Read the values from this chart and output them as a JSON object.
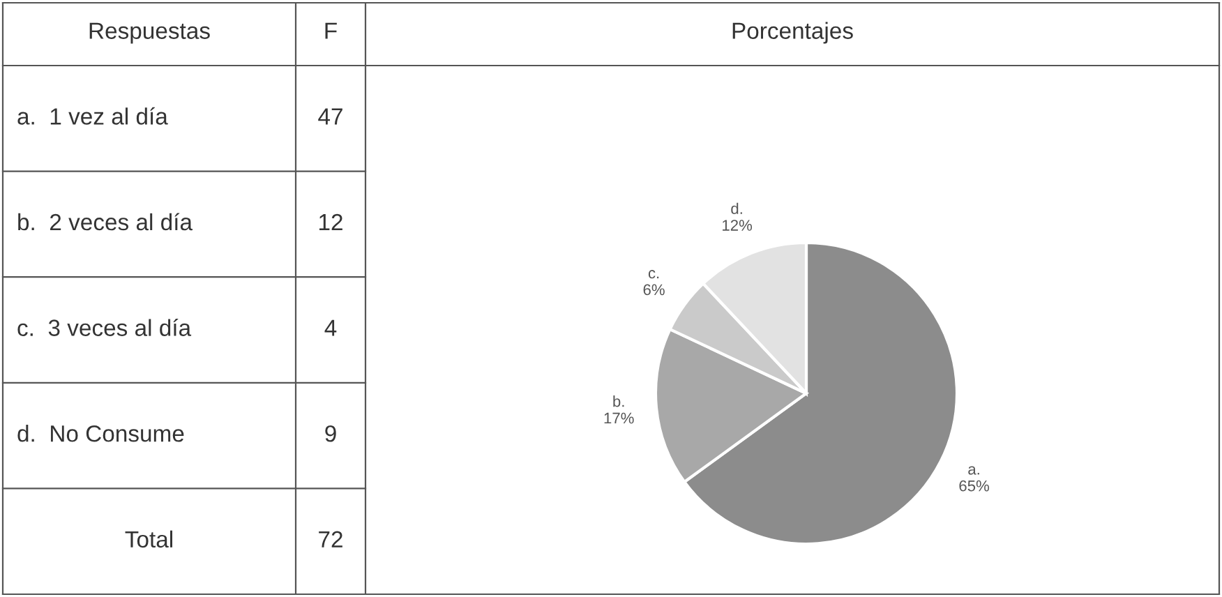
{
  "chart_data": {
    "type": "pie",
    "title": "Porcentajes",
    "categories": [
      "a.",
      "b.",
      "c.",
      "d."
    ],
    "values": [
      65,
      17,
      6,
      12
    ],
    "value_labels": [
      "65%",
      "17%",
      "6%",
      "12%"
    ],
    "colors": [
      "#8c8c8c",
      "#a8a8a8",
      "#cacaca",
      "#e2e2e2"
    ],
    "annotations": [
      "Respuestas",
      "F",
      "a.  1 vez al día",
      "47",
      "b.  2 veces al día",
      "12",
      "c.  3 veces al día",
      "4",
      "d.  No Consume",
      "9",
      "Total",
      "72"
    ]
  }
}
